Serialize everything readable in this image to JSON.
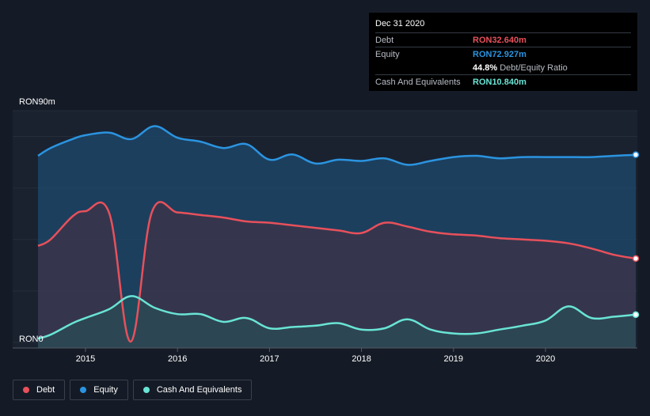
{
  "chart_data": {
    "type": "area",
    "title": "",
    "y_axis": {
      "min_label": "RON0",
      "max_label": "RON90m",
      "ylim": [
        0,
        90
      ]
    },
    "x_ticks": [
      "2015",
      "2016",
      "2017",
      "2018",
      "2019",
      "2020"
    ],
    "x_tick_values": [
      2015.0,
      2016.0,
      2017.0,
      2018.0,
      2019.0,
      2020.0
    ],
    "xlim": [
      2014.4,
      2021.0
    ],
    "series": [
      {
        "name": "Equity",
        "color": "#2b94e0",
        "x": [
          2014.35,
          2014.62,
          2014.86,
          2015.0,
          2015.26,
          2015.5,
          2015.75,
          2016.0,
          2016.25,
          2016.5,
          2016.75,
          2017.0,
          2017.25,
          2017.5,
          2017.75,
          2018.0,
          2018.25,
          2018.5,
          2018.75,
          2019.0,
          2019.25,
          2019.5,
          2019.75,
          2020.0,
          2020.25,
          2020.5,
          2020.75,
          2021.0
        ],
        "values": [
          72.5,
          75.5,
          79.0,
          80.5,
          81.5,
          79.0,
          84.0,
          79.5,
          78.0,
          75.5,
          77.0,
          71.0,
          73.0,
          69.5,
          71.0,
          70.5,
          71.5,
          69.0,
          70.5,
          72.0,
          72.5,
          71.5,
          72.0,
          72.0,
          72.0,
          72.0,
          72.5,
          72.9
        ]
      },
      {
        "name": "Debt",
        "color": "#e8505b",
        "x": [
          2014.35,
          2014.62,
          2014.86,
          2015.0,
          2015.26,
          2015.49,
          2015.72,
          2016.0,
          2016.25,
          2016.5,
          2016.75,
          2017.0,
          2017.25,
          2017.5,
          2017.75,
          2018.0,
          2018.25,
          2018.5,
          2018.75,
          2019.0,
          2019.25,
          2019.5,
          2019.75,
          2020.0,
          2020.25,
          2020.5,
          2020.75,
          2021.0
        ],
        "values": [
          37.5,
          40.0,
          49.0,
          51.0,
          50.0,
          0.3,
          50.5,
          50.5,
          49.5,
          48.5,
          47.0,
          46.5,
          45.5,
          44.5,
          43.5,
          42.5,
          46.5,
          45.0,
          43.0,
          42.0,
          41.5,
          40.5,
          40.0,
          39.5,
          38.5,
          36.5,
          34.0,
          32.6
        ]
      },
      {
        "name": "Cash And Equivalents",
        "color": "#69e4d5",
        "x": [
          2014.35,
          2014.62,
          2014.86,
          2015.0,
          2015.26,
          2015.5,
          2015.75,
          2016.0,
          2016.25,
          2016.5,
          2016.75,
          2017.0,
          2017.25,
          2017.5,
          2017.75,
          2018.0,
          2018.25,
          2018.5,
          2018.75,
          2019.0,
          2019.25,
          2019.5,
          2019.75,
          2020.0,
          2020.25,
          2020.5,
          2020.75,
          2021.0
        ],
        "values": [
          1.5,
          3.0,
          7.5,
          9.5,
          13.0,
          18.0,
          13.5,
          11.0,
          11.0,
          8.0,
          9.5,
          5.5,
          6.0,
          6.5,
          7.5,
          5.0,
          5.5,
          9.0,
          5.0,
          3.5,
          3.5,
          5.0,
          6.5,
          8.5,
          14.0,
          9.5,
          10.0,
          10.8
        ]
      }
    ],
    "tooltip": {
      "date": "Dec 31 2020",
      "rows": [
        {
          "label": "Debt",
          "value": "RON32.640m",
          "color": "#e8505b"
        },
        {
          "label": "Equity",
          "value": "RON72.927m",
          "color": "#2b94e0"
        },
        {
          "label": "",
          "value": "44.8%",
          "suffix": "Debt/Equity Ratio",
          "color": "#ffffff"
        },
        {
          "label": "Cash And Equivalents",
          "value": "RON10.840m",
          "color": "#69e4d5"
        }
      ]
    },
    "legend": [
      {
        "name": "Debt",
        "color": "#e8505b"
      },
      {
        "name": "Equity",
        "color": "#2b94e0"
      },
      {
        "name": "Cash And Equivalents",
        "color": "#69e4d5"
      }
    ]
  }
}
